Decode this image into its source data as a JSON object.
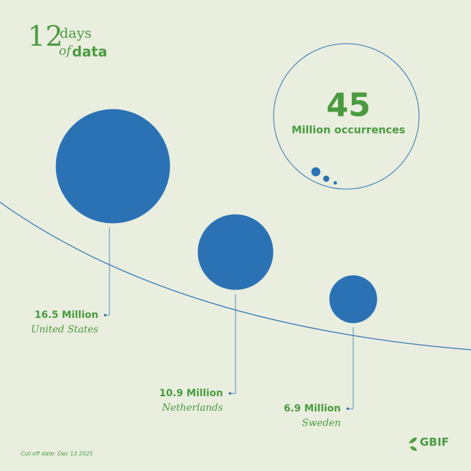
{
  "chart_data": {
    "type": "bubble",
    "title_number": "12",
    "title_words": [
      "days",
      "of",
      "data"
    ],
    "total": "45",
    "total_label": "Million occurrences",
    "categories": [
      "United States",
      "Netherlands",
      "Sweden"
    ],
    "values": [
      16.5,
      10.9,
      6.9
    ],
    "value_labels": [
      "16.5 Million",
      "10.9 Million",
      "6.9 Million"
    ],
    "color": "#2b72b5",
    "text_color": "#4a9b3f",
    "footnote": "Cut-off date: Dec 13 2025",
    "logo": "GBIF"
  }
}
